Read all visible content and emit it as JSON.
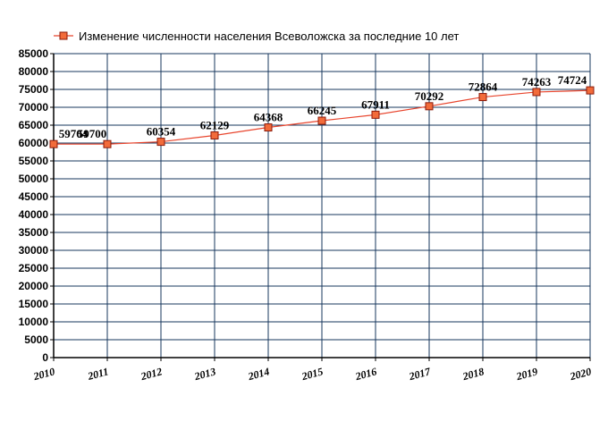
{
  "chart_data": {
    "type": "line",
    "title": "",
    "xlabel": "",
    "ylabel": "",
    "x": [
      "2010",
      "2011",
      "2012",
      "2013",
      "2014",
      "2015",
      "2016",
      "2017",
      "2018",
      "2019",
      "2020"
    ],
    "series": [
      {
        "name": "Изменение численности населения Всеволожска за последние 10 лет",
        "values": [
          59704,
          59700,
          60354,
          62129,
          64368,
          66245,
          67911,
          70292,
          72864,
          74263,
          74724
        ],
        "data_labels": [
          "59704",
          "59700",
          "60354",
          "62129",
          "64368",
          "66245",
          "67911",
          "70292",
          "72864",
          "74263",
          "74724"
        ]
      }
    ],
    "ylim": [
      0,
      85000
    ],
    "y_ticks": [
      "0",
      "5000",
      "10000",
      "15000",
      "20000",
      "25000",
      "30000",
      "35000",
      "40000",
      "45000",
      "50000",
      "55000",
      "60000",
      "65000",
      "70000",
      "75000",
      "80000",
      "85000"
    ],
    "grid": true,
    "legend_position": "top-left",
    "colors": {
      "line": "#e8442c",
      "marker_fill": "#f26b3a",
      "marker_stroke": "#8b1a0a",
      "grid": "#17375e",
      "axis": "#000000"
    }
  }
}
